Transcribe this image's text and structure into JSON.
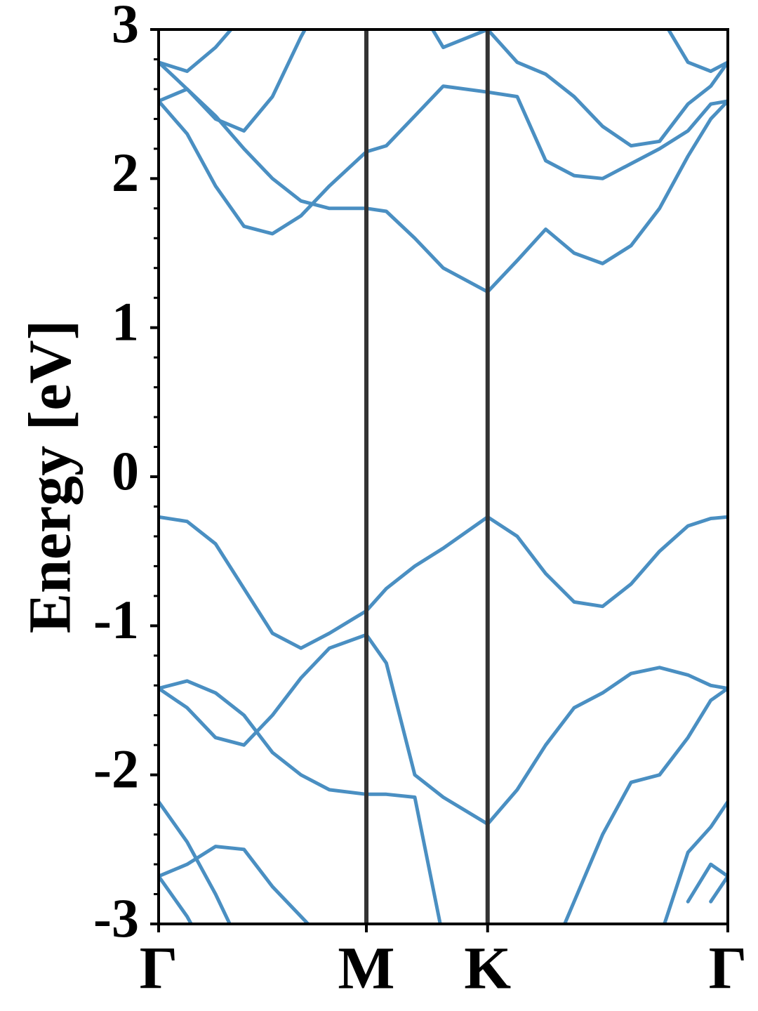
{
  "chart_data": {
    "type": "line",
    "ylabel": "Energy [eV]",
    "color": "#4a8fc2",
    "symmetry_line_color": "#333333",
    "xlim": [
      0,
      1
    ],
    "xticks": [
      {
        "value": 0,
        "label": "Γ"
      },
      {
        "value": 0.365,
        "label": "M"
      },
      {
        "value": 0.578,
        "label": "K"
      },
      {
        "value": 1,
        "label": "Γ"
      }
    ],
    "ylim": [
      -3,
      3
    ],
    "yticks": [
      -3,
      -2,
      -1,
      0,
      1,
      2,
      3
    ],
    "minor_yticks": [
      -2.8,
      -2.6,
      -2.4,
      -2.2,
      -1.8,
      -1.6,
      -1.4,
      -1.2,
      -0.8,
      -0.6,
      -0.4,
      -0.2,
      0.2,
      0.4,
      0.6,
      0.8,
      1.2,
      1.4,
      1.6,
      1.8,
      2.2,
      2.4,
      2.6,
      2.8
    ],
    "x": [
      0,
      0.05,
      0.1,
      0.15,
      0.2,
      0.25,
      0.3,
      0.365,
      0.4,
      0.45,
      0.5,
      0.578,
      0.63,
      0.68,
      0.73,
      0.78,
      0.83,
      0.88,
      0.93,
      0.97,
      1
    ],
    "series": [
      {
        "values": [
          2.52,
          2.3,
          1.95,
          1.68,
          1.63,
          1.75,
          1.95,
          2.18,
          2.22,
          2.42,
          2.62,
          2.58,
          2.55,
          2.12,
          2.02,
          2.0,
          2.1,
          2.2,
          2.32,
          2.5,
          2.52
        ]
      },
      {
        "values": [
          2.78,
          2.6,
          2.42,
          2.2,
          2.0,
          1.85,
          1.8,
          1.8,
          1.78,
          1.6,
          1.4,
          1.24,
          1.45,
          1.66,
          1.5,
          1.43,
          1.55,
          1.8,
          2.15,
          2.4,
          2.52
        ]
      },
      {
        "values": [
          2.52,
          2.6,
          2.4,
          2.32,
          2.55,
          2.95,
          3.3,
          null,
          null,
          3.2,
          2.88,
          3.0,
          2.78,
          2.7,
          2.55,
          2.35,
          2.22,
          2.25,
          2.5,
          2.62,
          2.78
        ]
      },
      {
        "values": [
          2.78,
          2.72,
          2.88,
          3.1,
          null,
          null,
          null,
          null,
          null,
          null,
          null,
          null,
          null,
          null,
          null,
          null,
          null,
          3.1,
          2.78,
          2.72,
          2.78
        ]
      },
      {
        "values": [
          -0.27,
          -0.3,
          -0.45,
          -0.75,
          -1.05,
          -1.15,
          -1.05,
          -0.9,
          -0.75,
          -0.6,
          -0.48,
          -0.27,
          -0.4,
          -0.65,
          -0.84,
          -0.87,
          -0.72,
          -0.5,
          -0.33,
          -0.28,
          -0.27
        ]
      },
      {
        "values": [
          -1.42,
          -1.55,
          -1.75,
          -1.8,
          -1.6,
          -1.35,
          -1.15,
          -1.06,
          -1.25,
          -2.0,
          -2.15,
          -2.33,
          -2.1,
          -1.8,
          -1.55,
          -1.45,
          -1.32,
          -1.28,
          -1.33,
          -1.4,
          -1.42
        ]
      },
      {
        "values": [
          -1.42,
          -1.37,
          -1.45,
          -1.6,
          -1.85,
          -2.0,
          -2.1,
          -2.13,
          -2.13,
          -2.15,
          -3.1,
          null,
          null,
          null,
          null,
          null,
          null,
          null,
          null,
          null,
          null
        ]
      },
      {
        "values": [
          null,
          null,
          null,
          null,
          null,
          null,
          null,
          null,
          null,
          null,
          null,
          null,
          null,
          -3.3,
          -2.85,
          -2.4,
          -2.05,
          -2.0,
          -1.75,
          -1.5,
          -1.42
        ]
      },
      {
        "values": [
          -2.18,
          -2.45,
          -2.8,
          -3.2,
          null,
          null,
          null,
          null,
          null,
          null,
          null,
          null,
          null,
          null,
          null,
          null,
          null,
          null,
          null,
          null,
          null
        ]
      },
      {
        "values": [
          -2.68,
          -2.6,
          -2.48,
          -2.5,
          -2.75,
          -2.95,
          -3.15,
          null,
          null,
          null,
          null,
          null,
          null,
          null,
          null,
          null,
          null,
          null,
          null,
          null,
          null
        ]
      },
      {
        "values": [
          -2.68,
          -2.95,
          -3.3,
          null,
          null,
          null,
          null,
          null,
          null,
          null,
          null,
          null,
          null,
          null,
          null,
          null,
          null,
          null,
          null,
          null,
          null
        ]
      },
      {
        "values": [
          null,
          null,
          null,
          null,
          null,
          null,
          null,
          null,
          null,
          null,
          null,
          null,
          null,
          null,
          null,
          null,
          null,
          -3.1,
          -2.52,
          -2.35,
          -2.18
        ]
      },
      {
        "values": [
          null,
          null,
          null,
          null,
          null,
          null,
          null,
          null,
          null,
          null,
          null,
          null,
          null,
          null,
          null,
          null,
          null,
          null,
          -2.85,
          -2.6,
          -2.68
        ]
      },
      {
        "values": [
          null,
          null,
          null,
          null,
          null,
          null,
          null,
          null,
          null,
          null,
          null,
          null,
          null,
          null,
          null,
          null,
          null,
          null,
          null,
          -2.85,
          -2.68
        ]
      }
    ]
  }
}
